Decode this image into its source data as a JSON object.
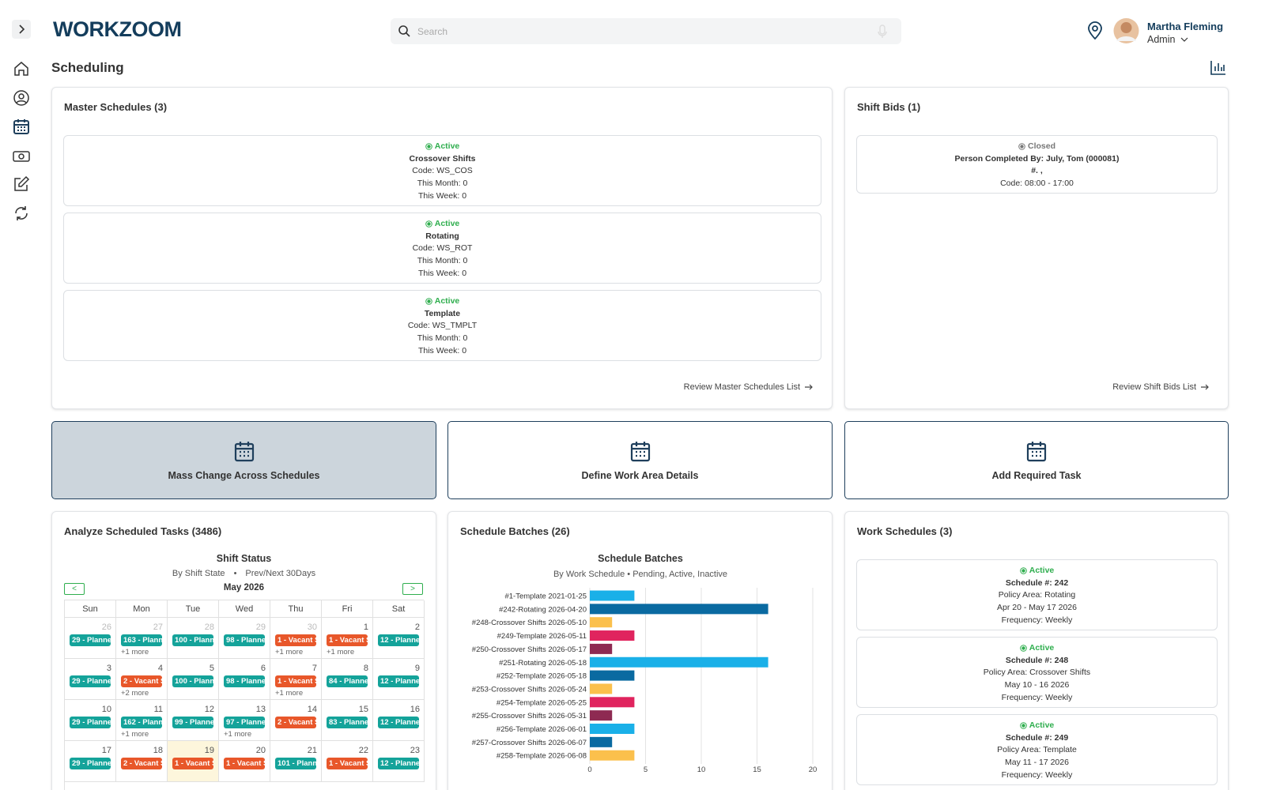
{
  "nav": {
    "logo": "WORKZOOM",
    "search_placeholder": "Search",
    "user_name": "Martha Fleming",
    "user_role": "Admin"
  },
  "page_title": "Scheduling",
  "master_schedules": {
    "title": "Master Schedules (3)",
    "link": "Review Master Schedules List",
    "items": [
      {
        "status": "Active",
        "status_color": "#2fae4e",
        "name": "Crossover Shifts",
        "code": "Code: WS_COS",
        "this_month": "This Month: 0",
        "this_week": "This Week: 0"
      },
      {
        "status": "Active",
        "status_color": "#2fae4e",
        "name": "Rotating",
        "code": "Code: WS_ROT",
        "this_month": "This Month: 0",
        "this_week": "This Week: 0"
      },
      {
        "status": "Active",
        "status_color": "#2fae4e",
        "name": "Template",
        "code": "Code: WS_TMPLT",
        "this_month": "This Month: 0",
        "this_week": "This Week: 0"
      }
    ]
  },
  "shift_bids": {
    "title": "Shift Bids (1)",
    "link": "Review Shift Bids List",
    "items": [
      {
        "status": "Closed",
        "status_color": "#777777",
        "person": "Person Completed By: July, Tom (000081)",
        "number": "#. ,",
        "code": "Code: 08:00 - 17:00"
      }
    ]
  },
  "actions": [
    "Mass Change Across Schedules",
    "Define Work Area Details",
    "Add Required Task"
  ],
  "scheduled_tasks": {
    "title": "Analyze Scheduled Tasks (3486)",
    "chart_title": "Shift Status",
    "subtitle_left": "By Shift State",
    "subtitle_right": "Prev/Next 30Days",
    "prev": "<",
    "next": ">",
    "month": "May 2026",
    "weekdays": [
      "Sun",
      "Mon",
      "Tue",
      "Wed",
      "Thu",
      "Fri",
      "Sat"
    ],
    "weeks": [
      [
        {
          "day": 26,
          "muted": true,
          "events": [
            {
              "label": "29 - Planne",
              "color": "#14a39a"
            }
          ]
        },
        {
          "day": 27,
          "muted": true,
          "events": [
            {
              "label": "163 - Plann",
              "color": "#14a39a"
            }
          ],
          "more": "+1 more"
        },
        {
          "day": 28,
          "muted": true,
          "events": [
            {
              "label": "100 - Plann",
              "color": "#14a39a"
            }
          ]
        },
        {
          "day": 29,
          "muted": true,
          "events": [
            {
              "label": "98 - Planne",
              "color": "#14a39a"
            }
          ]
        },
        {
          "day": 30,
          "muted": true,
          "events": [
            {
              "label": "1 - Vacant S",
              "color": "#e8572a"
            }
          ],
          "more": "+1 more"
        },
        {
          "day": 1,
          "events": [
            {
              "label": "1 - Vacant S",
              "color": "#e8572a"
            }
          ],
          "more": "+1 more"
        },
        {
          "day": 2,
          "events": [
            {
              "label": "12 - Planne",
              "color": "#14a39a"
            }
          ]
        }
      ],
      [
        {
          "day": 3,
          "events": [
            {
              "label": "29 - Planne",
              "color": "#14a39a"
            }
          ]
        },
        {
          "day": 4,
          "events": [
            {
              "label": "2 - Vacant S",
              "color": "#e8572a"
            }
          ],
          "more": "+2 more"
        },
        {
          "day": 5,
          "events": [
            {
              "label": "100 - Plann",
              "color": "#14a39a"
            }
          ]
        },
        {
          "day": 6,
          "events": [
            {
              "label": "98 - Planne",
              "color": "#14a39a"
            }
          ]
        },
        {
          "day": 7,
          "events": [
            {
              "label": "1 - Vacant S",
              "color": "#e8572a"
            }
          ],
          "more": "+1 more"
        },
        {
          "day": 8,
          "events": [
            {
              "label": "84 - Planne",
              "color": "#14a39a"
            }
          ]
        },
        {
          "day": 9,
          "events": [
            {
              "label": "12 - Planne",
              "color": "#14a39a"
            }
          ]
        }
      ],
      [
        {
          "day": 10,
          "events": [
            {
              "label": "29 - Planne",
              "color": "#14a39a"
            }
          ]
        },
        {
          "day": 11,
          "events": [
            {
              "label": "162 - Plann",
              "color": "#14a39a"
            }
          ],
          "more": "+1 more"
        },
        {
          "day": 12,
          "events": [
            {
              "label": "99 - Planne",
              "color": "#14a39a"
            }
          ]
        },
        {
          "day": 13,
          "events": [
            {
              "label": "97 - Planne",
              "color": "#14a39a"
            }
          ],
          "more": "+1 more"
        },
        {
          "day": 14,
          "events": [
            {
              "label": "2 - Vacant S",
              "color": "#e8572a"
            }
          ]
        },
        {
          "day": 15,
          "events": [
            {
              "label": "83 - Planne",
              "color": "#14a39a"
            }
          ]
        },
        {
          "day": 16,
          "events": [
            {
              "label": "12 - Planne",
              "color": "#14a39a"
            }
          ]
        }
      ],
      [
        {
          "day": 17,
          "events": [
            {
              "label": "29 - Planne",
              "color": "#14a39a"
            }
          ]
        },
        {
          "day": 18,
          "events": [
            {
              "label": "2 - Vacant S",
              "color": "#e8572a"
            }
          ]
        },
        {
          "day": 19,
          "today": true,
          "events": [
            {
              "label": "1 - Vacant S",
              "color": "#e8572a"
            }
          ]
        },
        {
          "day": 20,
          "events": [
            {
              "label": "1 - Vacant S",
              "color": "#e8572a"
            }
          ]
        },
        {
          "day": 21,
          "events": [
            {
              "label": "101 - Plann",
              "color": "#14a39a"
            }
          ]
        },
        {
          "day": 22,
          "events": [
            {
              "label": "1 - Vacant S",
              "color": "#e8572a"
            }
          ]
        },
        {
          "day": 23,
          "events": [
            {
              "label": "12 - Planne",
              "color": "#14a39a"
            }
          ]
        }
      ]
    ]
  },
  "schedule_batches": {
    "title": "Schedule Batches (26)",
    "chart": {
      "type": "bar",
      "orientation": "horizontal",
      "title": "Schedule Batches",
      "subtitle_left": "By Work Schedule",
      "subtitle_right": "Pending, Active, Inactive",
      "categories": [
        "#1-Template 2021-01-25",
        "#242-Rotating 2026-04-20",
        "#248-Crossover Shifts 2026-05-10",
        "#249-Template 2026-05-11",
        "#250-Crossover Shifts 2026-05-17",
        "#251-Rotating 2026-05-18",
        "#252-Template 2026-05-18",
        "#253-Crossover Shifts 2026-05-24",
        "#254-Template 2026-05-25",
        "#255-Crossover Shifts 2026-05-31",
        "#256-Template 2026-06-01",
        "#257-Crossover Shifts 2026-06-07",
        "#258-Template 2026-06-08"
      ],
      "values": [
        4,
        16,
        2,
        4,
        2,
        16,
        4,
        2,
        4,
        2,
        4,
        2,
        4
      ],
      "colors": [
        "#1ab0e8",
        "#0a6aa1",
        "#fbc04c",
        "#e0245e",
        "#8e2a52",
        "#1ab0e8",
        "#0a6aa1",
        "#fbc04c",
        "#e0245e",
        "#8e2a52",
        "#1ab0e8",
        "#0a6aa1",
        "#fbc04c"
      ],
      "xlim": [
        0,
        20
      ],
      "xticks": [
        0,
        5,
        10,
        15,
        20
      ],
      "grid": true
    }
  },
  "work_schedules": {
    "title": "Work Schedules (3)",
    "items": [
      {
        "status": "Active",
        "status_color": "#2fae4e",
        "number": "Schedule #: 242",
        "policy": "Policy Area: Rotating",
        "dates": "Apr 20 - May 17 2026",
        "frequency": "Frequency: Weekly"
      },
      {
        "status": "Active",
        "status_color": "#2fae4e",
        "number": "Schedule #: 248",
        "policy": "Policy Area: Crossover Shifts",
        "dates": "May 10 - 16 2026",
        "frequency": "Frequency: Weekly"
      },
      {
        "status": "Active",
        "status_color": "#2fae4e",
        "number": "Schedule #: 249",
        "policy": "Policy Area: Template",
        "dates": "May 11 - 17 2026",
        "frequency": "Frequency: Weekly"
      }
    ]
  }
}
